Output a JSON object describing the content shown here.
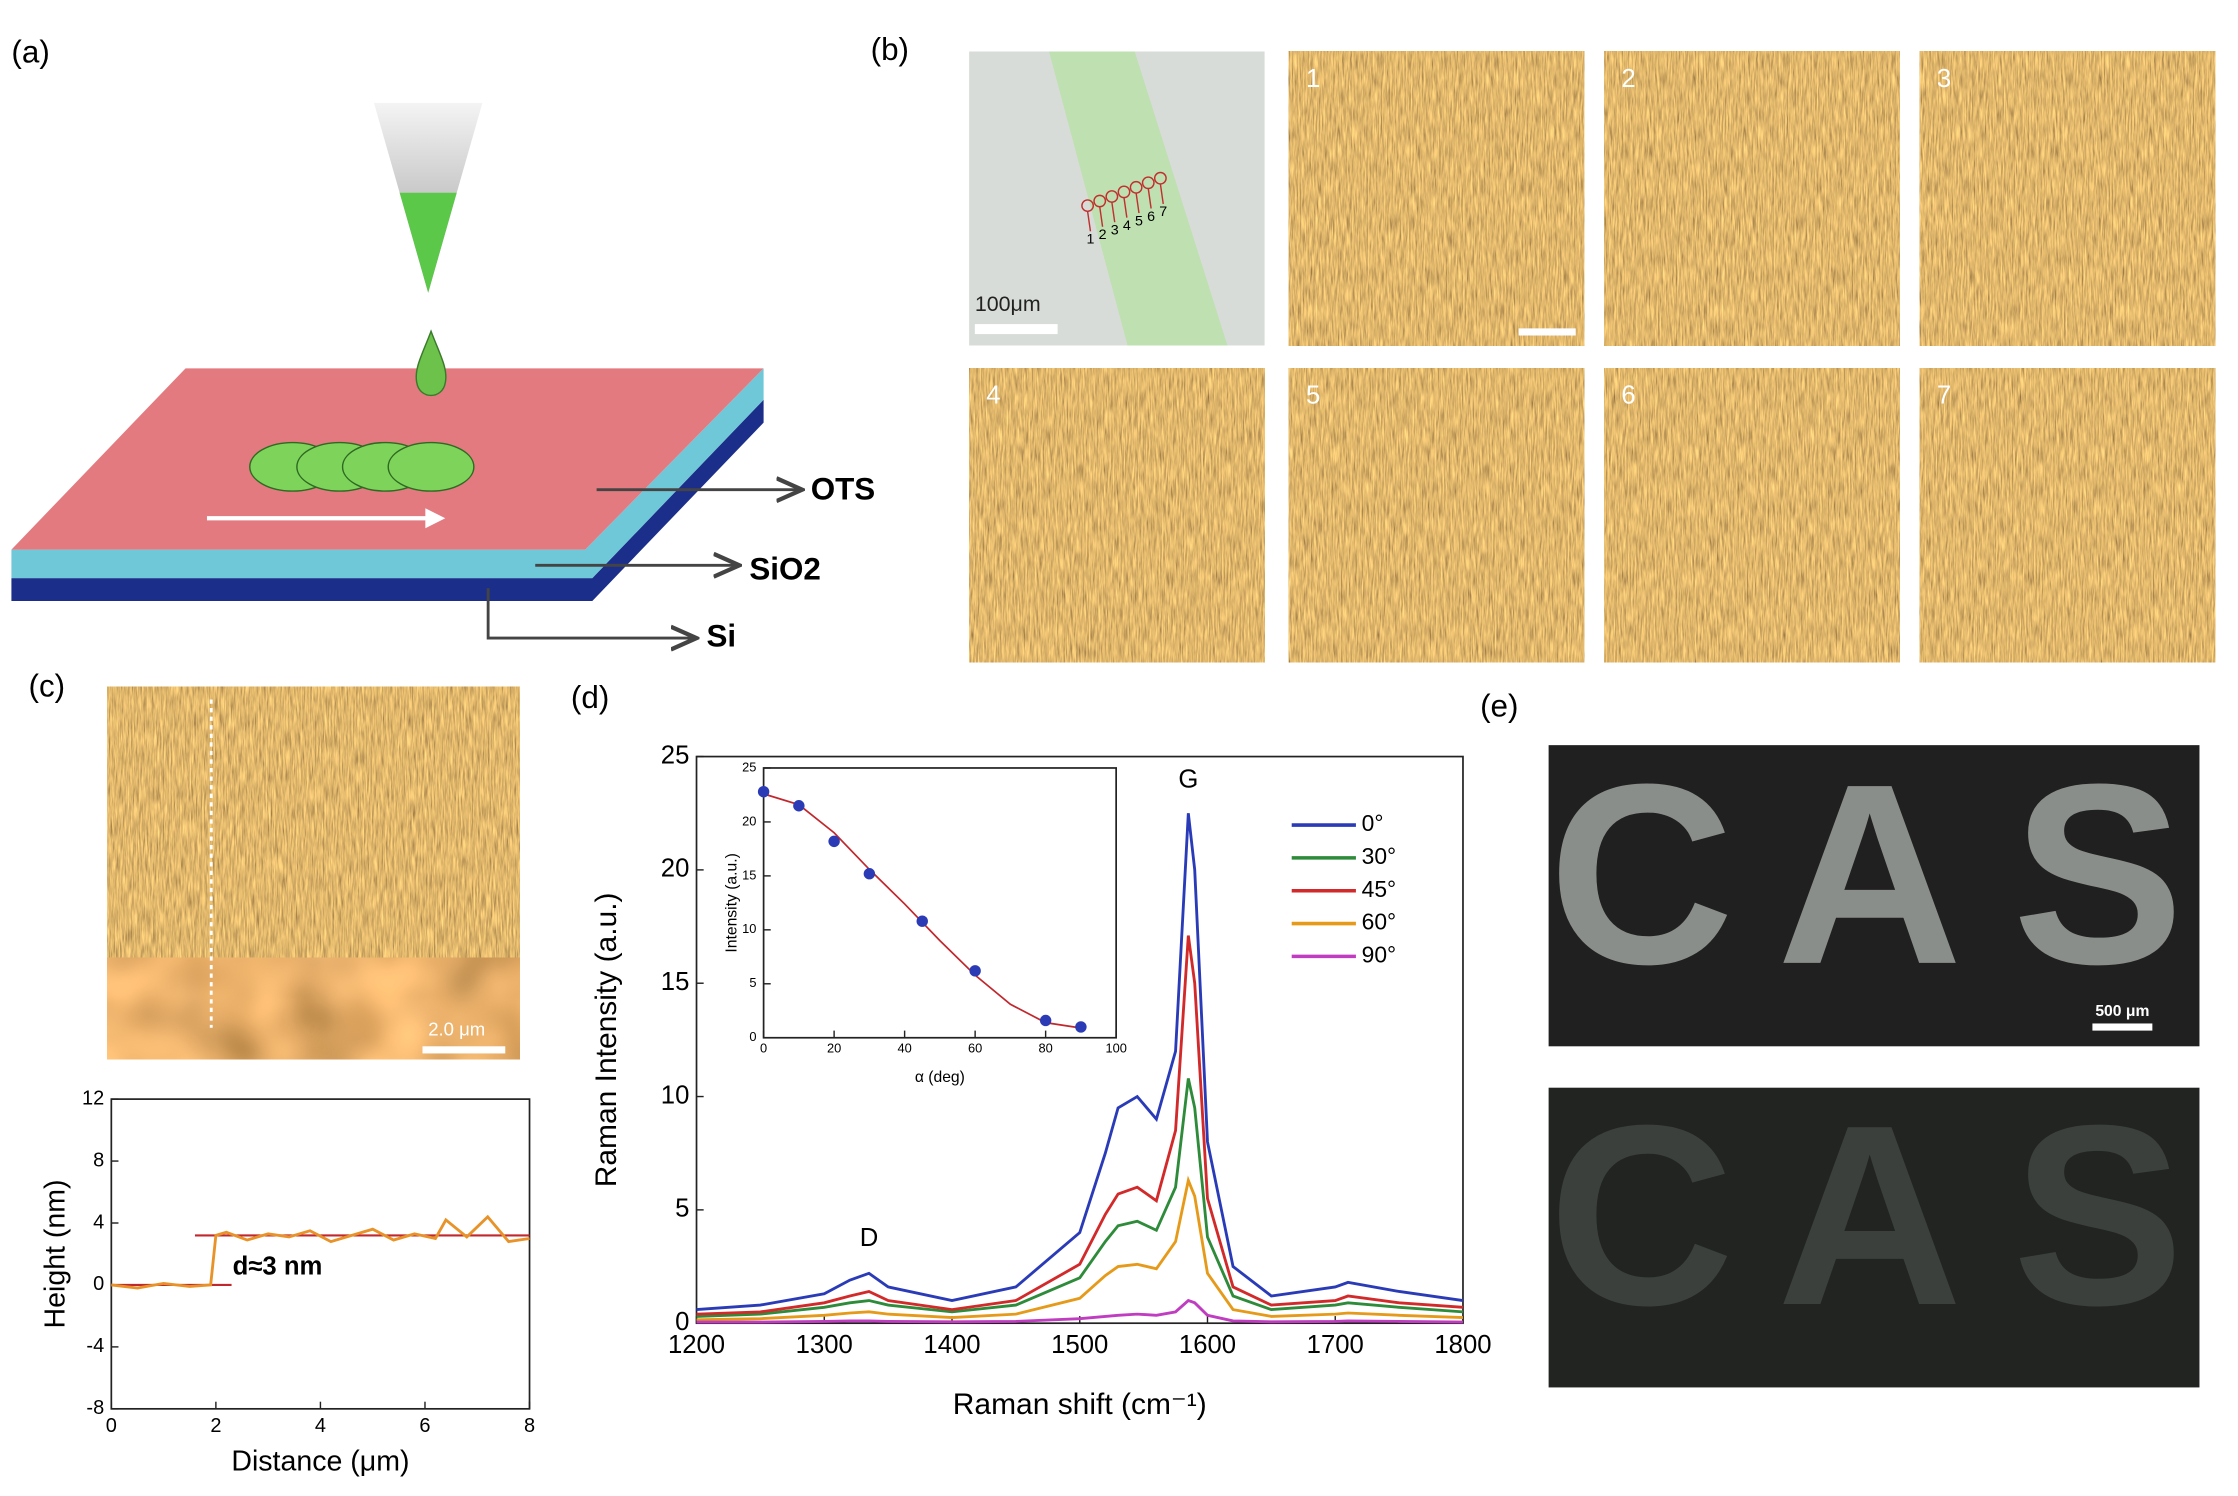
{
  "panels": {
    "a": {
      "label": "(a)",
      "layers": [
        "OTS",
        "SiO2",
        "Si"
      ]
    },
    "b": {
      "label": "(b)",
      "scale": "100μm",
      "points": [
        "1",
        "2",
        "3",
        "4",
        "5",
        "6",
        "7"
      ],
      "tiles": [
        "1",
        "2",
        "3",
        "4",
        "5",
        "6",
        "7"
      ]
    },
    "c": {
      "label": "(c)",
      "scale": "2.0 μm"
    },
    "d": {
      "label": "(d)"
    },
    "e": {
      "label": "(e)",
      "scale": "500 μm",
      "letters": [
        "C",
        "A",
        "S"
      ]
    }
  },
  "chart_data": [
    {
      "type": "line",
      "xlabel": "Distance (μm)",
      "ylabel": "Height (nm)",
      "annotation": "d≈3 nm",
      "x": [
        0,
        0.5,
        1,
        1.5,
        1.9,
        2,
        2.2,
        2.6,
        3,
        3.4,
        3.8,
        4.2,
        4.6,
        5,
        5.4,
        5.8,
        6.2,
        6.4,
        6.8,
        7.2,
        7.6,
        8
      ],
      "series": [
        {
          "color": "#e8932a",
          "values": [
            0,
            -0.2,
            0.1,
            -0.1,
            0,
            3.2,
            3.4,
            2.9,
            3.3,
            3.1,
            3.5,
            2.8,
            3.2,
            3.6,
            2.9,
            3.3,
            3.0,
            4.2,
            3.1,
            4.4,
            2.8,
            3.0
          ]
        }
      ],
      "xlim": [
        0,
        8
      ],
      "xticks": [
        0,
        2,
        4,
        6,
        8
      ],
      "ylim": [
        -8,
        12
      ],
      "yticks": [
        -8,
        -4,
        0,
        4,
        8,
        12
      ]
    },
    {
      "type": "line",
      "xlabel": "Raman shift (cm⁻¹)",
      "ylabel": "Raman Intensity (a.u.)",
      "annotations": [
        "D",
        "G"
      ],
      "x": [
        1200,
        1250,
        1300,
        1320,
        1335,
        1350,
        1400,
        1450,
        1500,
        1520,
        1530,
        1545,
        1560,
        1575,
        1585,
        1590,
        1600,
        1620,
        1650,
        1700,
        1710,
        1750,
        1800
      ],
      "series": [
        {
          "name": "0°",
          "color": "#2a3bb8",
          "values": [
            0.6,
            0.8,
            1.3,
            1.9,
            2.2,
            1.6,
            1.0,
            1.6,
            4.0,
            7.5,
            9.5,
            10.0,
            9.0,
            12.0,
            22.5,
            20.0,
            8.0,
            2.5,
            1.2,
            1.6,
            1.8,
            1.4,
            1.0
          ]
        },
        {
          "name": "30°",
          "color": "#2e8b3a",
          "values": [
            0.3,
            0.4,
            0.7,
            0.9,
            1.0,
            0.8,
            0.5,
            0.8,
            2.0,
            3.6,
            4.3,
            4.5,
            4.1,
            6.0,
            10.8,
            9.5,
            3.8,
            1.2,
            0.6,
            0.8,
            0.9,
            0.7,
            0.5
          ]
        },
        {
          "name": "45°",
          "color": "#d22a2a",
          "values": [
            0.4,
            0.5,
            0.9,
            1.2,
            1.4,
            1.0,
            0.6,
            1.0,
            2.6,
            4.8,
            5.7,
            6.0,
            5.4,
            8.5,
            17.1,
            15.0,
            5.5,
            1.6,
            0.8,
            1.0,
            1.2,
            0.9,
            0.7
          ]
        },
        {
          "name": "60°",
          "color": "#e69a1a",
          "values": [
            0.15,
            0.2,
            0.35,
            0.45,
            0.5,
            0.4,
            0.25,
            0.4,
            1.1,
            2.1,
            2.5,
            2.6,
            2.4,
            3.6,
            6.3,
            5.6,
            2.2,
            0.6,
            0.3,
            0.4,
            0.45,
            0.35,
            0.25
          ]
        },
        {
          "name": "90°",
          "color": "#c03cc0",
          "values": [
            0.05,
            0.05,
            0.08,
            0.1,
            0.1,
            0.08,
            0.06,
            0.08,
            0.2,
            0.3,
            0.35,
            0.4,
            0.35,
            0.5,
            1.0,
            0.9,
            0.35,
            0.1,
            0.06,
            0.08,
            0.1,
            0.08,
            0.05
          ]
        }
      ],
      "xlim": [
        1200,
        1800
      ],
      "xticks": [
        1200,
        1300,
        1400,
        1500,
        1600,
        1700,
        1800
      ],
      "ylim": [
        0,
        25
      ],
      "yticks": [
        0,
        5,
        10,
        15,
        20,
        25
      ]
    },
    {
      "type": "scatter",
      "xlabel": "α (deg)",
      "ylabel": "Intensity (a.u.)",
      "x": [
        0,
        10,
        20,
        30,
        45,
        60,
        80,
        90
      ],
      "series": [
        {
          "color": "#2b3bb5",
          "values": [
            22.8,
            21.5,
            18.2,
            15.2,
            10.8,
            6.2,
            1.6,
            1.0
          ]
        }
      ],
      "fit": {
        "color": "#c0282d",
        "x": [
          0,
          10,
          20,
          30,
          40,
          50,
          60,
          70,
          80,
          90
        ],
        "values": [
          22.6,
          21.6,
          19.0,
          15.6,
          12.4,
          9.0,
          5.8,
          3.1,
          1.4,
          0.9
        ]
      },
      "xlim": [
        0,
        100
      ],
      "xticks": [
        0,
        20,
        40,
        60,
        80,
        100
      ],
      "ylim": [
        0,
        25
      ],
      "yticks": [
        0,
        5,
        10,
        15,
        20,
        25
      ]
    }
  ]
}
